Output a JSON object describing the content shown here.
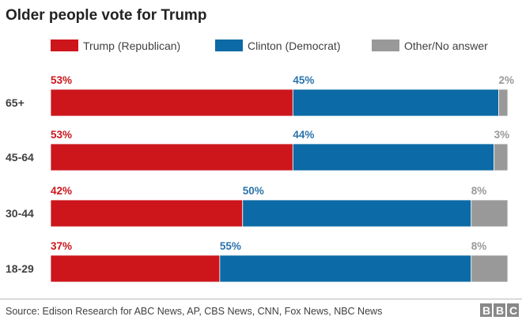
{
  "chart_data": {
    "type": "bar",
    "orientation": "horizontal",
    "stacked": true,
    "title": "Older people vote for Trump",
    "categories": [
      "65+",
      "45-64",
      "30-44",
      "18-29"
    ],
    "series": [
      {
        "name": "Trump (Republican)",
        "color": "#cc161c",
        "values": [
          53,
          53,
          42,
          37
        ]
      },
      {
        "name": "Clinton (Democrat)",
        "color": "#0c6aa6",
        "values": [
          45,
          44,
          50,
          55
        ]
      },
      {
        "name": "Other/No answer",
        "color": "#999999",
        "values": [
          2,
          3,
          8,
          8
        ]
      }
    ],
    "label_suffix": "%",
    "legend_position": "top",
    "grid": false,
    "xlim": [
      0,
      100
    ]
  },
  "footer": {
    "source": "Source: Edison Research for ABC News, AP, CBS News, CNN, Fox News, NBC News",
    "logo": "BBC"
  }
}
